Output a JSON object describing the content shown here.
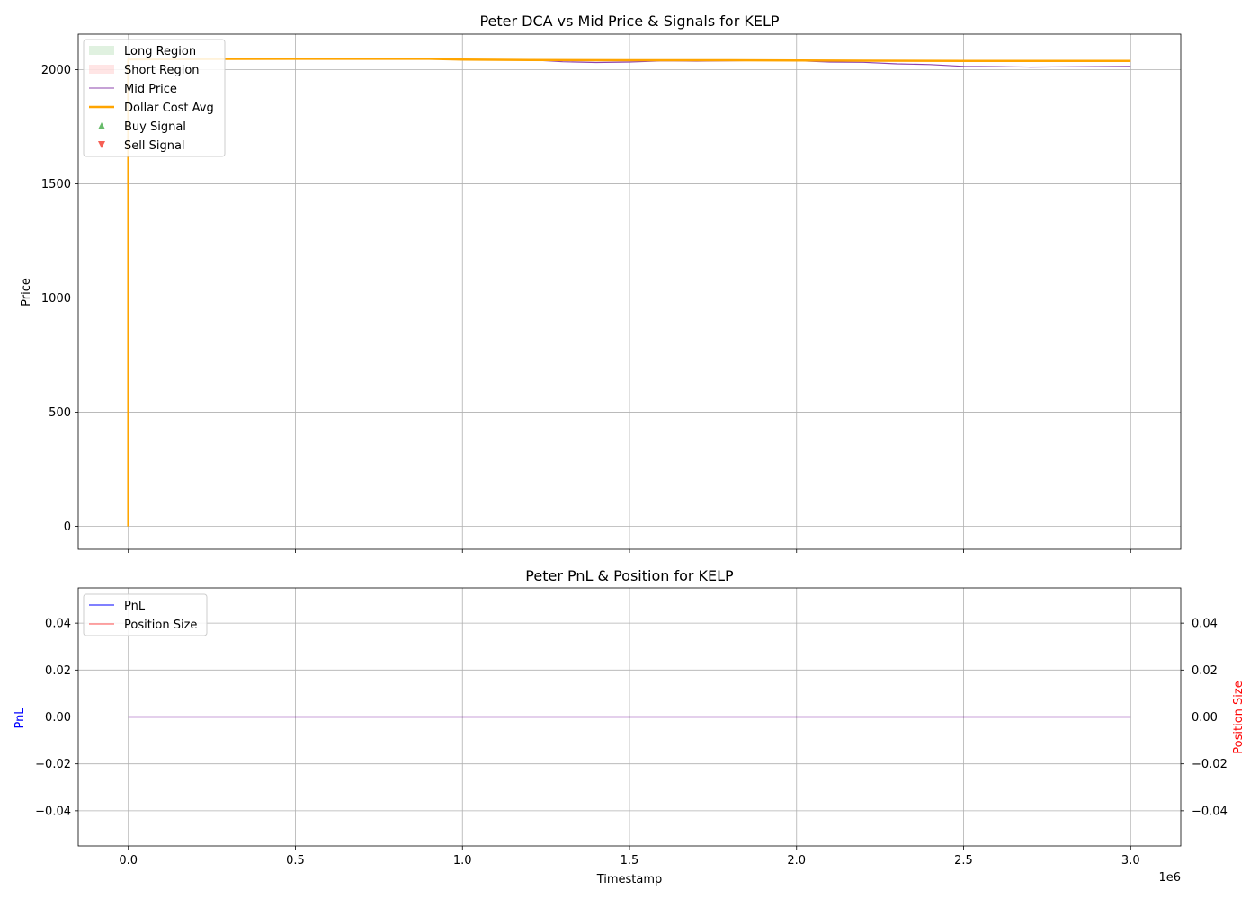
{
  "chart_data": [
    {
      "type": "line",
      "title": "Peter DCA vs Mid Price & Signals for KELP",
      "xlabel": "",
      "ylabel": "Price",
      "xlim": [
        -150000,
        3150000
      ],
      "ylim": [
        -100,
        2155
      ],
      "x_ticks": [
        0,
        500000,
        1000000,
        1500000,
        2000000,
        2500000,
        3000000
      ],
      "x_tick_labels": [
        "0.0",
        "0.5",
        "1.0",
        "1.5",
        "2.0",
        "2.5",
        "3.0"
      ],
      "x_offset_label": "1e6",
      "y_ticks": [
        0,
        500,
        1000,
        1500,
        2000
      ],
      "y_tick_labels": [
        "0",
        "500",
        "1000",
        "1500",
        "2000"
      ],
      "grid": true,
      "legend_position": "upper left",
      "legend": [
        {
          "label": "Long Region",
          "kind": "patch",
          "color": "#2ca02c"
        },
        {
          "label": "Short Region",
          "kind": "patch",
          "color": "#ff9896"
        },
        {
          "label": "Mid Price",
          "kind": "line",
          "color": "#8e44ad"
        },
        {
          "label": "Dollar Cost Avg",
          "kind": "thick-line",
          "color": "#ffa500"
        },
        {
          "label": "Buy Signal",
          "kind": "up-triangle",
          "color": "#4caf50"
        },
        {
          "label": "Sell Signal",
          "kind": "down-triangle",
          "color": "#f44336"
        }
      ],
      "series": [
        {
          "name": "Mid Price",
          "color": "#8e44ad",
          "x": [
            0,
            100000,
            200000,
            300000,
            400000,
            500000,
            600000,
            700000,
            800000,
            900000,
            1000000,
            1100000,
            1200000,
            1300000,
            1400000,
            1500000,
            1600000,
            1700000,
            1800000,
            1900000,
            2000000,
            2100000,
            2200000,
            2300000,
            2400000,
            2500000,
            2600000,
            2700000,
            2800000,
            2900000,
            3000000
          ],
          "y": [
            2045,
            2047,
            2048,
            2048,
            2047,
            2048,
            2048,
            2049,
            2050,
            2050,
            2043,
            2042,
            2043,
            2034,
            2031,
            2033,
            2038,
            2037,
            2038,
            2040,
            2039,
            2033,
            2032,
            2025,
            2022,
            2014,
            2013,
            2011,
            2012,
            2013,
            2014
          ]
        },
        {
          "name": "Dollar Cost Avg",
          "color": "#ffa500",
          "x": [
            0,
            0,
            100000,
            500000,
            900000,
            1000000,
            1200000,
            1500000,
            1800000,
            2000000,
            2200000,
            2500000,
            3000000
          ],
          "y": [
            0,
            2045,
            2046,
            2047,
            2047,
            2044,
            2042,
            2041,
            2041,
            2040,
            2039,
            2038,
            2038
          ]
        }
      ]
    },
    {
      "type": "line",
      "title": "Peter PnL & Position for KELP",
      "xlabel": "Timestamp",
      "ylabel": "PnL",
      "ylabel_color": "#0000ff",
      "y2label": "Position Size",
      "y2label_color": "#ff0000",
      "xlim": [
        -150000,
        3150000
      ],
      "ylim": [
        -0.055,
        0.055
      ],
      "y2lim": [
        -0.055,
        0.055
      ],
      "x_ticks": [
        0,
        500000,
        1000000,
        1500000,
        2000000,
        2500000,
        3000000
      ],
      "x_tick_labels": [
        "0.0",
        "0.5",
        "1.0",
        "1.5",
        "2.0",
        "2.5",
        "3.0"
      ],
      "x_offset_label": "1e6",
      "y_ticks": [
        -0.04,
        -0.02,
        0,
        0.02,
        0.04
      ],
      "y_tick_labels": [
        "−0.04",
        "−0.02",
        "0.00",
        "0.02",
        "0.04"
      ],
      "grid": true,
      "legend_position": "upper left",
      "legend": [
        {
          "label": "PnL",
          "kind": "line",
          "color": "#0000ff"
        },
        {
          "label": "Position Size",
          "kind": "line",
          "color": "#ff0000"
        }
      ],
      "series": [
        {
          "name": "PnL",
          "color": "#0000ff",
          "x": [
            0,
            3000000
          ],
          "y": [
            0,
            0
          ]
        },
        {
          "name": "Position Size",
          "color": "#ff0000",
          "x": [
            0,
            3000000
          ],
          "y": [
            0,
            0
          ]
        }
      ]
    }
  ]
}
